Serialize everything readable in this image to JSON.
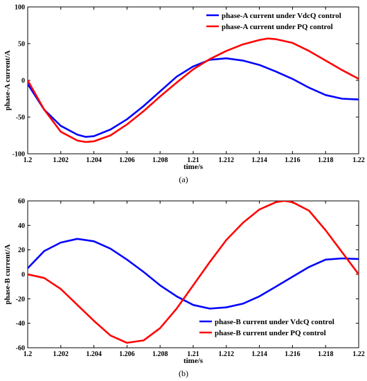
{
  "chart_data": [
    {
      "type": "line",
      "caption": "(a)",
      "xlabel": "time/s",
      "ylabel": "phase-A current/A",
      "xlim": [
        1.2,
        1.22
      ],
      "ylim": [
        -100,
        100
      ],
      "xticks": [
        "1.2",
        "1.202",
        "1.204",
        "1.206",
        "1.208",
        "1.21",
        "1.212",
        "1.214",
        "1.216",
        "1.218",
        "1.22"
      ],
      "yticks": [
        "100",
        "50",
        "0",
        "-50",
        "-100"
      ],
      "grid": false,
      "legend_position": "top-right",
      "series": [
        {
          "name": "phase-A current under VdcQ control",
          "color": "#0000ff",
          "x": [
            1.2,
            1.201,
            1.202,
            1.203,
            1.2035,
            1.204,
            1.205,
            1.206,
            1.207,
            1.208,
            1.209,
            1.21,
            1.211,
            1.212,
            1.213,
            1.214,
            1.215,
            1.216,
            1.217,
            1.218,
            1.219,
            1.22
          ],
          "y": [
            -5,
            -40,
            -62,
            -74,
            -77,
            -76,
            -67,
            -53,
            -35,
            -15,
            5,
            19,
            28,
            30,
            27,
            21,
            12,
            2,
            -10,
            -20,
            -25,
            -26
          ]
        },
        {
          "name": "phase-A current under PQ control",
          "color": "#ff0000",
          "x": [
            1.2,
            1.201,
            1.202,
            1.203,
            1.2035,
            1.204,
            1.205,
            1.206,
            1.207,
            1.208,
            1.209,
            1.21,
            1.211,
            1.212,
            1.213,
            1.214,
            1.2145,
            1.215,
            1.216,
            1.217,
            1.218,
            1.219,
            1.22
          ],
          "y": [
            0,
            -40,
            -70,
            -82,
            -84,
            -83,
            -75,
            -60,
            -42,
            -22,
            -3,
            15,
            29,
            40,
            49,
            55,
            57,
            56,
            51,
            40,
            27,
            14,
            2
          ]
        }
      ]
    },
    {
      "type": "line",
      "caption": "(b)",
      "xlabel": "time/s",
      "ylabel": "phase-B current/A",
      "xlim": [
        1.2,
        1.22
      ],
      "ylim": [
        -60,
        60
      ],
      "xticks": [
        "1.2",
        "1.202",
        "1.204",
        "1.206",
        "1.208",
        "1.21",
        "1.212",
        "1.214",
        "1.216",
        "1.218",
        "1.22"
      ],
      "yticks": [
        "60",
        "40",
        "20",
        "0",
        "-20",
        "-40",
        "-60"
      ],
      "grid": false,
      "legend_position": "bottom-right",
      "series": [
        {
          "name": "phase-B current under VdcQ control",
          "color": "#0000ff",
          "x": [
            1.2,
            1.201,
            1.202,
            1.203,
            1.204,
            1.205,
            1.206,
            1.207,
            1.208,
            1.209,
            1.21,
            1.211,
            1.212,
            1.213,
            1.214,
            1.215,
            1.216,
            1.217,
            1.218,
            1.219,
            1.22
          ],
          "y": [
            5,
            19,
            26,
            29,
            27,
            21,
            12,
            2,
            -9,
            -18,
            -25,
            -28,
            -27,
            -24,
            -18,
            -10,
            -2,
            6,
            12,
            13,
            12.5
          ]
        },
        {
          "name": "phase-B current under PQ control",
          "color": "#ff0000",
          "x": [
            1.2,
            1.201,
            1.202,
            1.203,
            1.204,
            1.205,
            1.206,
            1.207,
            1.208,
            1.209,
            1.21,
            1.211,
            1.212,
            1.213,
            1.214,
            1.215,
            1.2155,
            1.216,
            1.217,
            1.218,
            1.219,
            1.22
          ],
          "y": [
            0,
            -3,
            -12,
            -25,
            -38,
            -50,
            -56,
            -54,
            -44,
            -28,
            -9,
            10,
            28,
            42,
            53,
            59,
            60,
            59,
            52,
            36,
            18,
            0
          ]
        }
      ]
    }
  ]
}
